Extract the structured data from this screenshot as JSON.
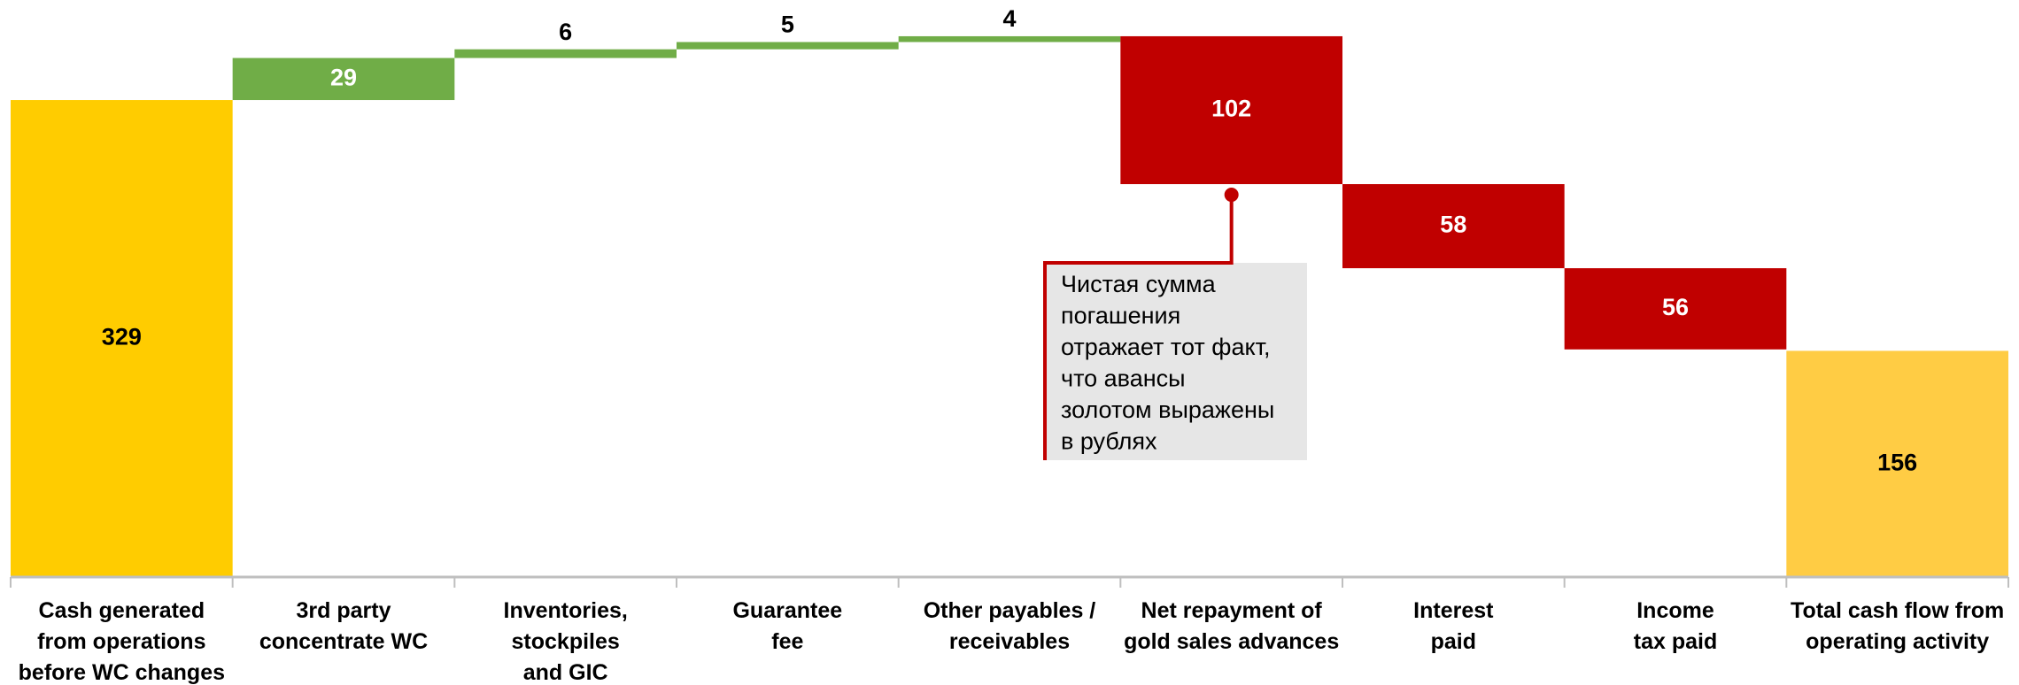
{
  "chart_data": {
    "type": "waterfall",
    "categories": [
      "Cash generated\nfrom operations\nbefore WC changes",
      "3rd party\nconcentrate WC",
      "Inventories,\nstockpiles\nand GIC",
      "Guarantee\nfee",
      "Other payables /\nreceivables",
      "Net repayment of\ngold sales advances",
      "Interest\npaid",
      "Income\ntax paid",
      "Total cash flow from\noperating activity"
    ],
    "values": [
      329,
      29,
      6,
      5,
      4,
      -102,
      -58,
      -56,
      156
    ],
    "value_labels": [
      "329",
      "29",
      "6",
      "5",
      "4",
      "102",
      "58",
      "56",
      "156"
    ],
    "measures": [
      "total",
      "relative",
      "relative",
      "relative",
      "relative",
      "relative",
      "relative",
      "relative",
      "total"
    ],
    "colors": [
      "#ffcc00",
      "#70ad47",
      "#70ad47",
      "#70ad47",
      "#70ad47",
      "#c00000",
      "#c00000",
      "#c00000",
      "#ffcc44"
    ],
    "ylim": [
      0,
      398
    ],
    "annotation": "Чистая сумма\nпогашения\nотражает тот факт,\nчто авансы\nзолотом выражены\nв рублях"
  }
}
